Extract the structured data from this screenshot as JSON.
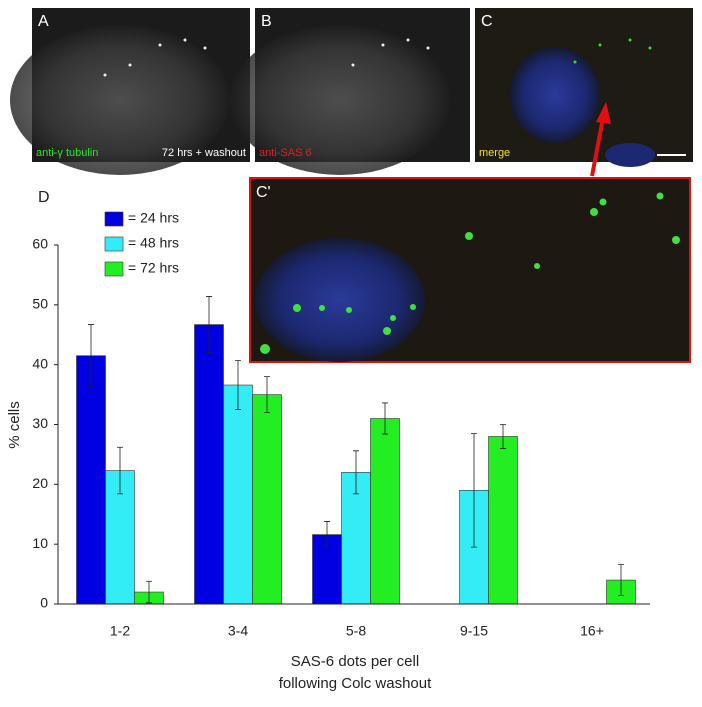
{
  "panels": {
    "a": {
      "letter": "A",
      "stain": "anti-γ tubulin",
      "note": "72 hrs + washout"
    },
    "b": {
      "letter": "B",
      "stain": "anti-SAS 6"
    },
    "c": {
      "letter": "C",
      "stain": "merge"
    },
    "c_prime": {
      "letter": "C'"
    }
  },
  "chart_data": {
    "type": "bar",
    "panel_letter": "D",
    "categories": [
      "1-2",
      "3-4",
      "5-8",
      "9-15",
      "16+"
    ],
    "series": [
      {
        "name": "= 24 hrs",
        "color": "#0000e0",
        "values": [
          41.5,
          46.7,
          11.6,
          null,
          null
        ],
        "errors": [
          5.2,
          4.7,
          2.2,
          null,
          null
        ]
      },
      {
        "name": "= 48 hrs",
        "color": "#33ecf5",
        "values": [
          22.3,
          36.6,
          22,
          19,
          null
        ],
        "errors": [
          3.9,
          4.1,
          3.6,
          9.5,
          null
        ]
      },
      {
        "name": "= 72 hrs",
        "color": "#22ee22",
        "values": [
          2,
          35,
          31,
          28,
          4
        ],
        "errors": [
          1.8,
          3,
          2.6,
          2,
          2.6
        ]
      }
    ],
    "ylim": [
      0,
      60
    ],
    "yticks": [
      0,
      10,
      20,
      30,
      40,
      50,
      60
    ],
    "ylabel": "% cells",
    "xlabel": [
      "SAS-6 dots per cell",
      "following Colc washout"
    ]
  }
}
